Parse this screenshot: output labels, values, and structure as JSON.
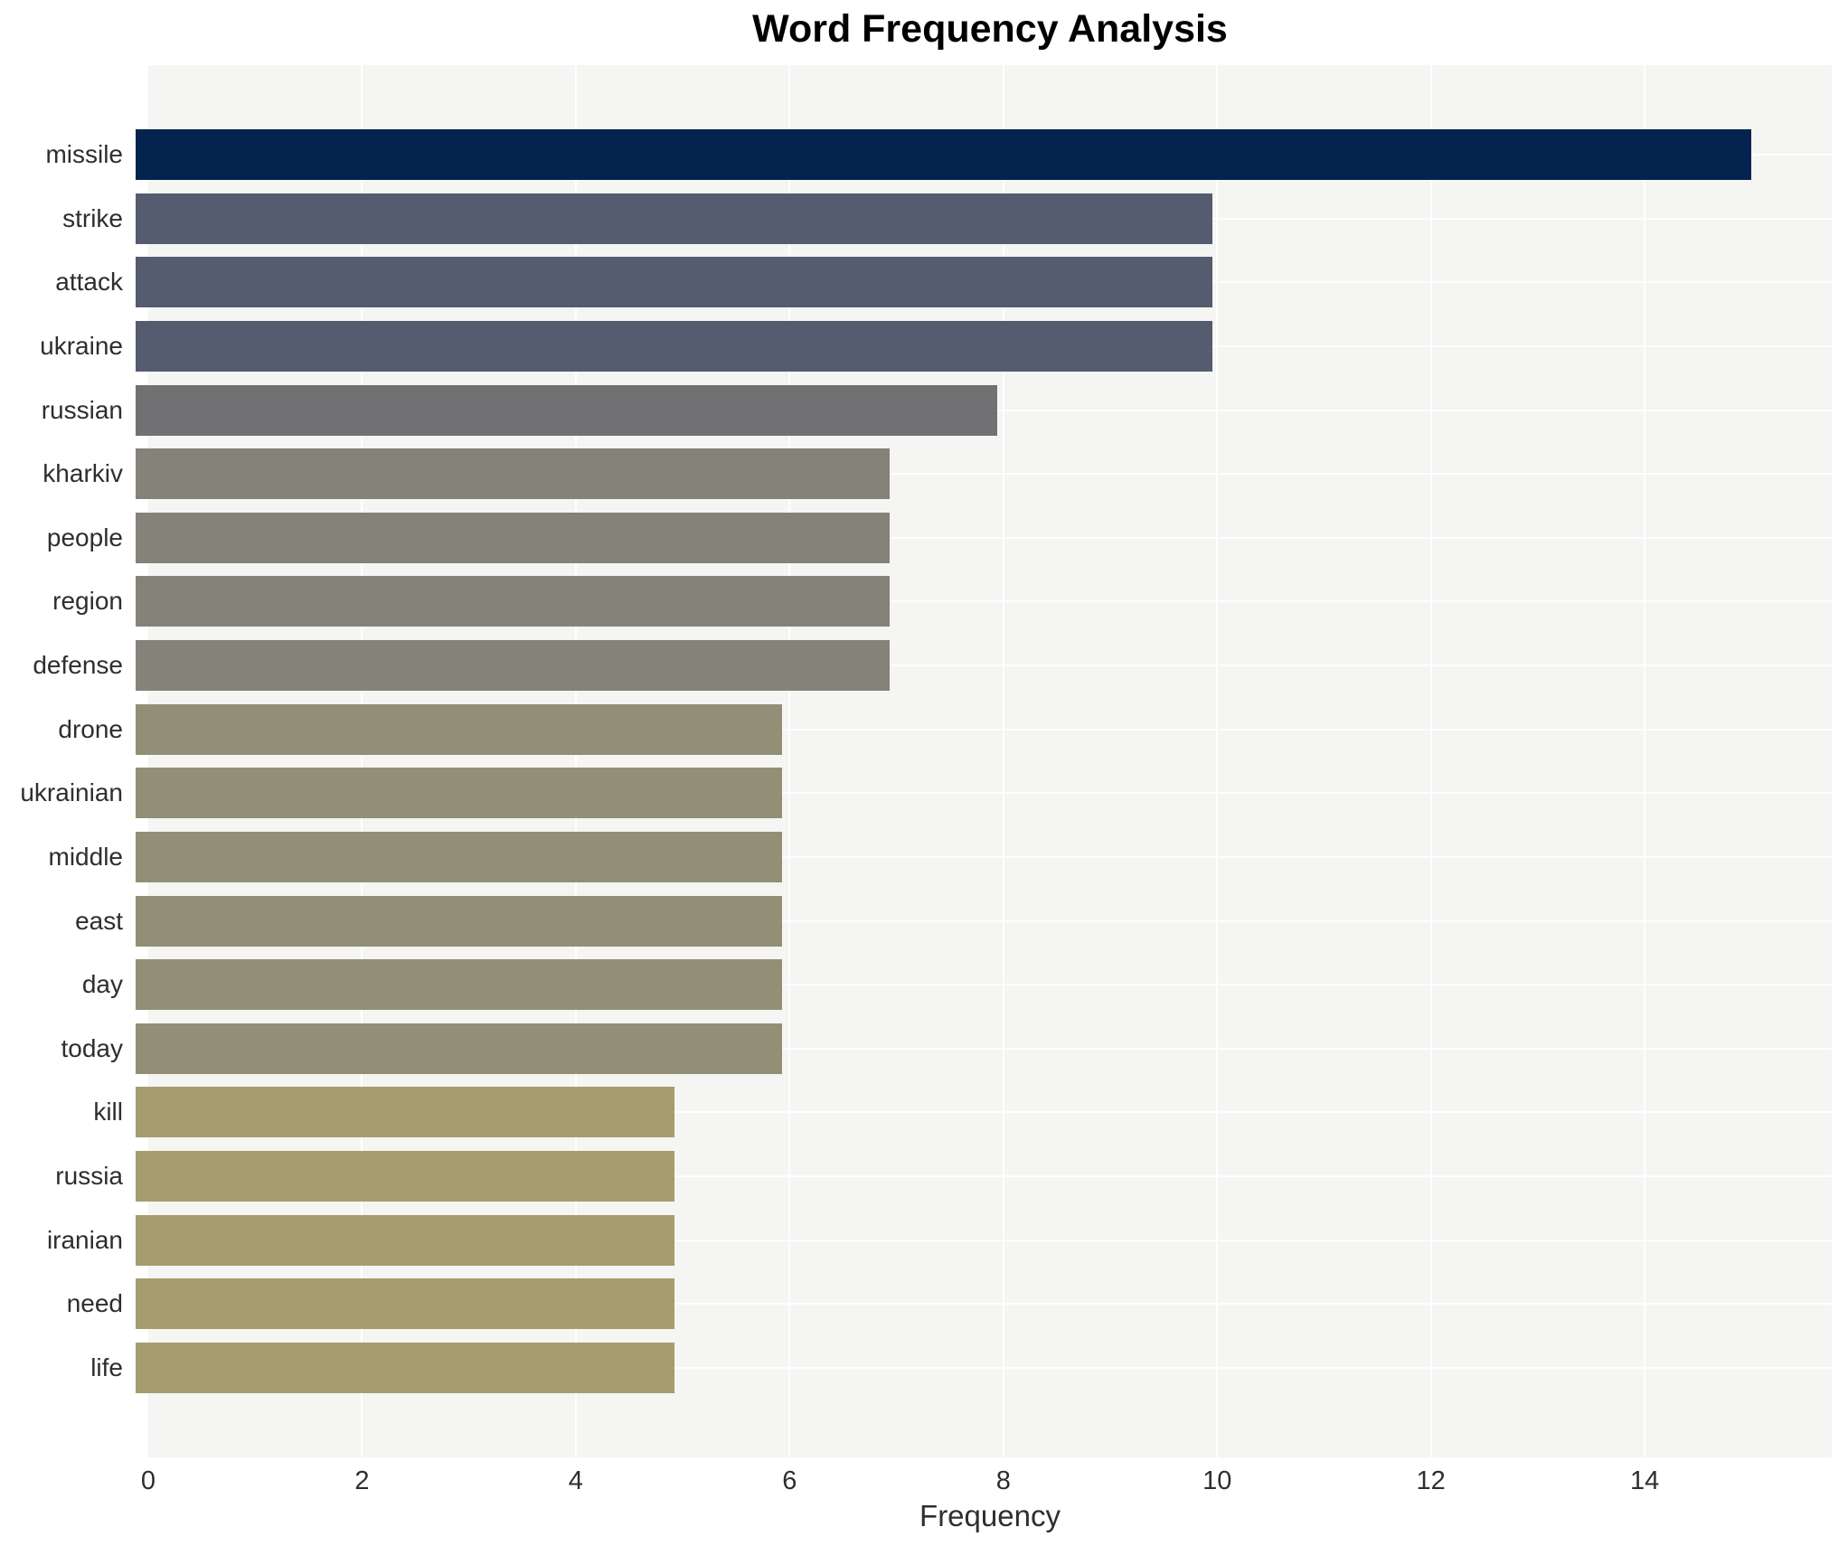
{
  "title": "Word Frequency Analysis",
  "xlabel": "Frequency",
  "colors": {
    "figure_background": "#ffffff",
    "plot_background": "#f5f5f3",
    "gridline": "#ffffff",
    "title_text": "#000000",
    "tick_text": "#2e2e2e"
  },
  "chart_data": {
    "type": "bar",
    "orientation": "horizontal",
    "title": "Word Frequency Analysis",
    "xlabel": "Frequency",
    "ylabel": "",
    "categories": [
      "missile",
      "strike",
      "attack",
      "ukraine",
      "russian",
      "kharkiv",
      "people",
      "region",
      "defense",
      "drone",
      "ukrainian",
      "middle",
      "east",
      "day",
      "today",
      "kill",
      "russia",
      "iranian",
      "need",
      "life"
    ],
    "values": [
      15,
      10,
      10,
      10,
      8,
      7,
      7,
      7,
      7,
      6,
      6,
      6,
      6,
      6,
      6,
      5,
      5,
      5,
      5,
      5
    ],
    "bar_colors": [
      "#04234e",
      "#565c6f",
      "#565c6f",
      "#565c6f",
      "#717174",
      "#848279",
      "#848279",
      "#848279",
      "#848279",
      "#938f77",
      "#938f77",
      "#938f77",
      "#938f77",
      "#938f77",
      "#938f77",
      "#a59d6f",
      "#a59d6f",
      "#a59d6f",
      "#a59d6f",
      "#a59d6f"
    ],
    "xlim": [
      0,
      15.75
    ],
    "xticks": [
      0,
      2,
      4,
      6,
      8,
      10,
      12,
      14
    ],
    "grid": "white gridlines on light gray plot background",
    "legend": "none"
  }
}
